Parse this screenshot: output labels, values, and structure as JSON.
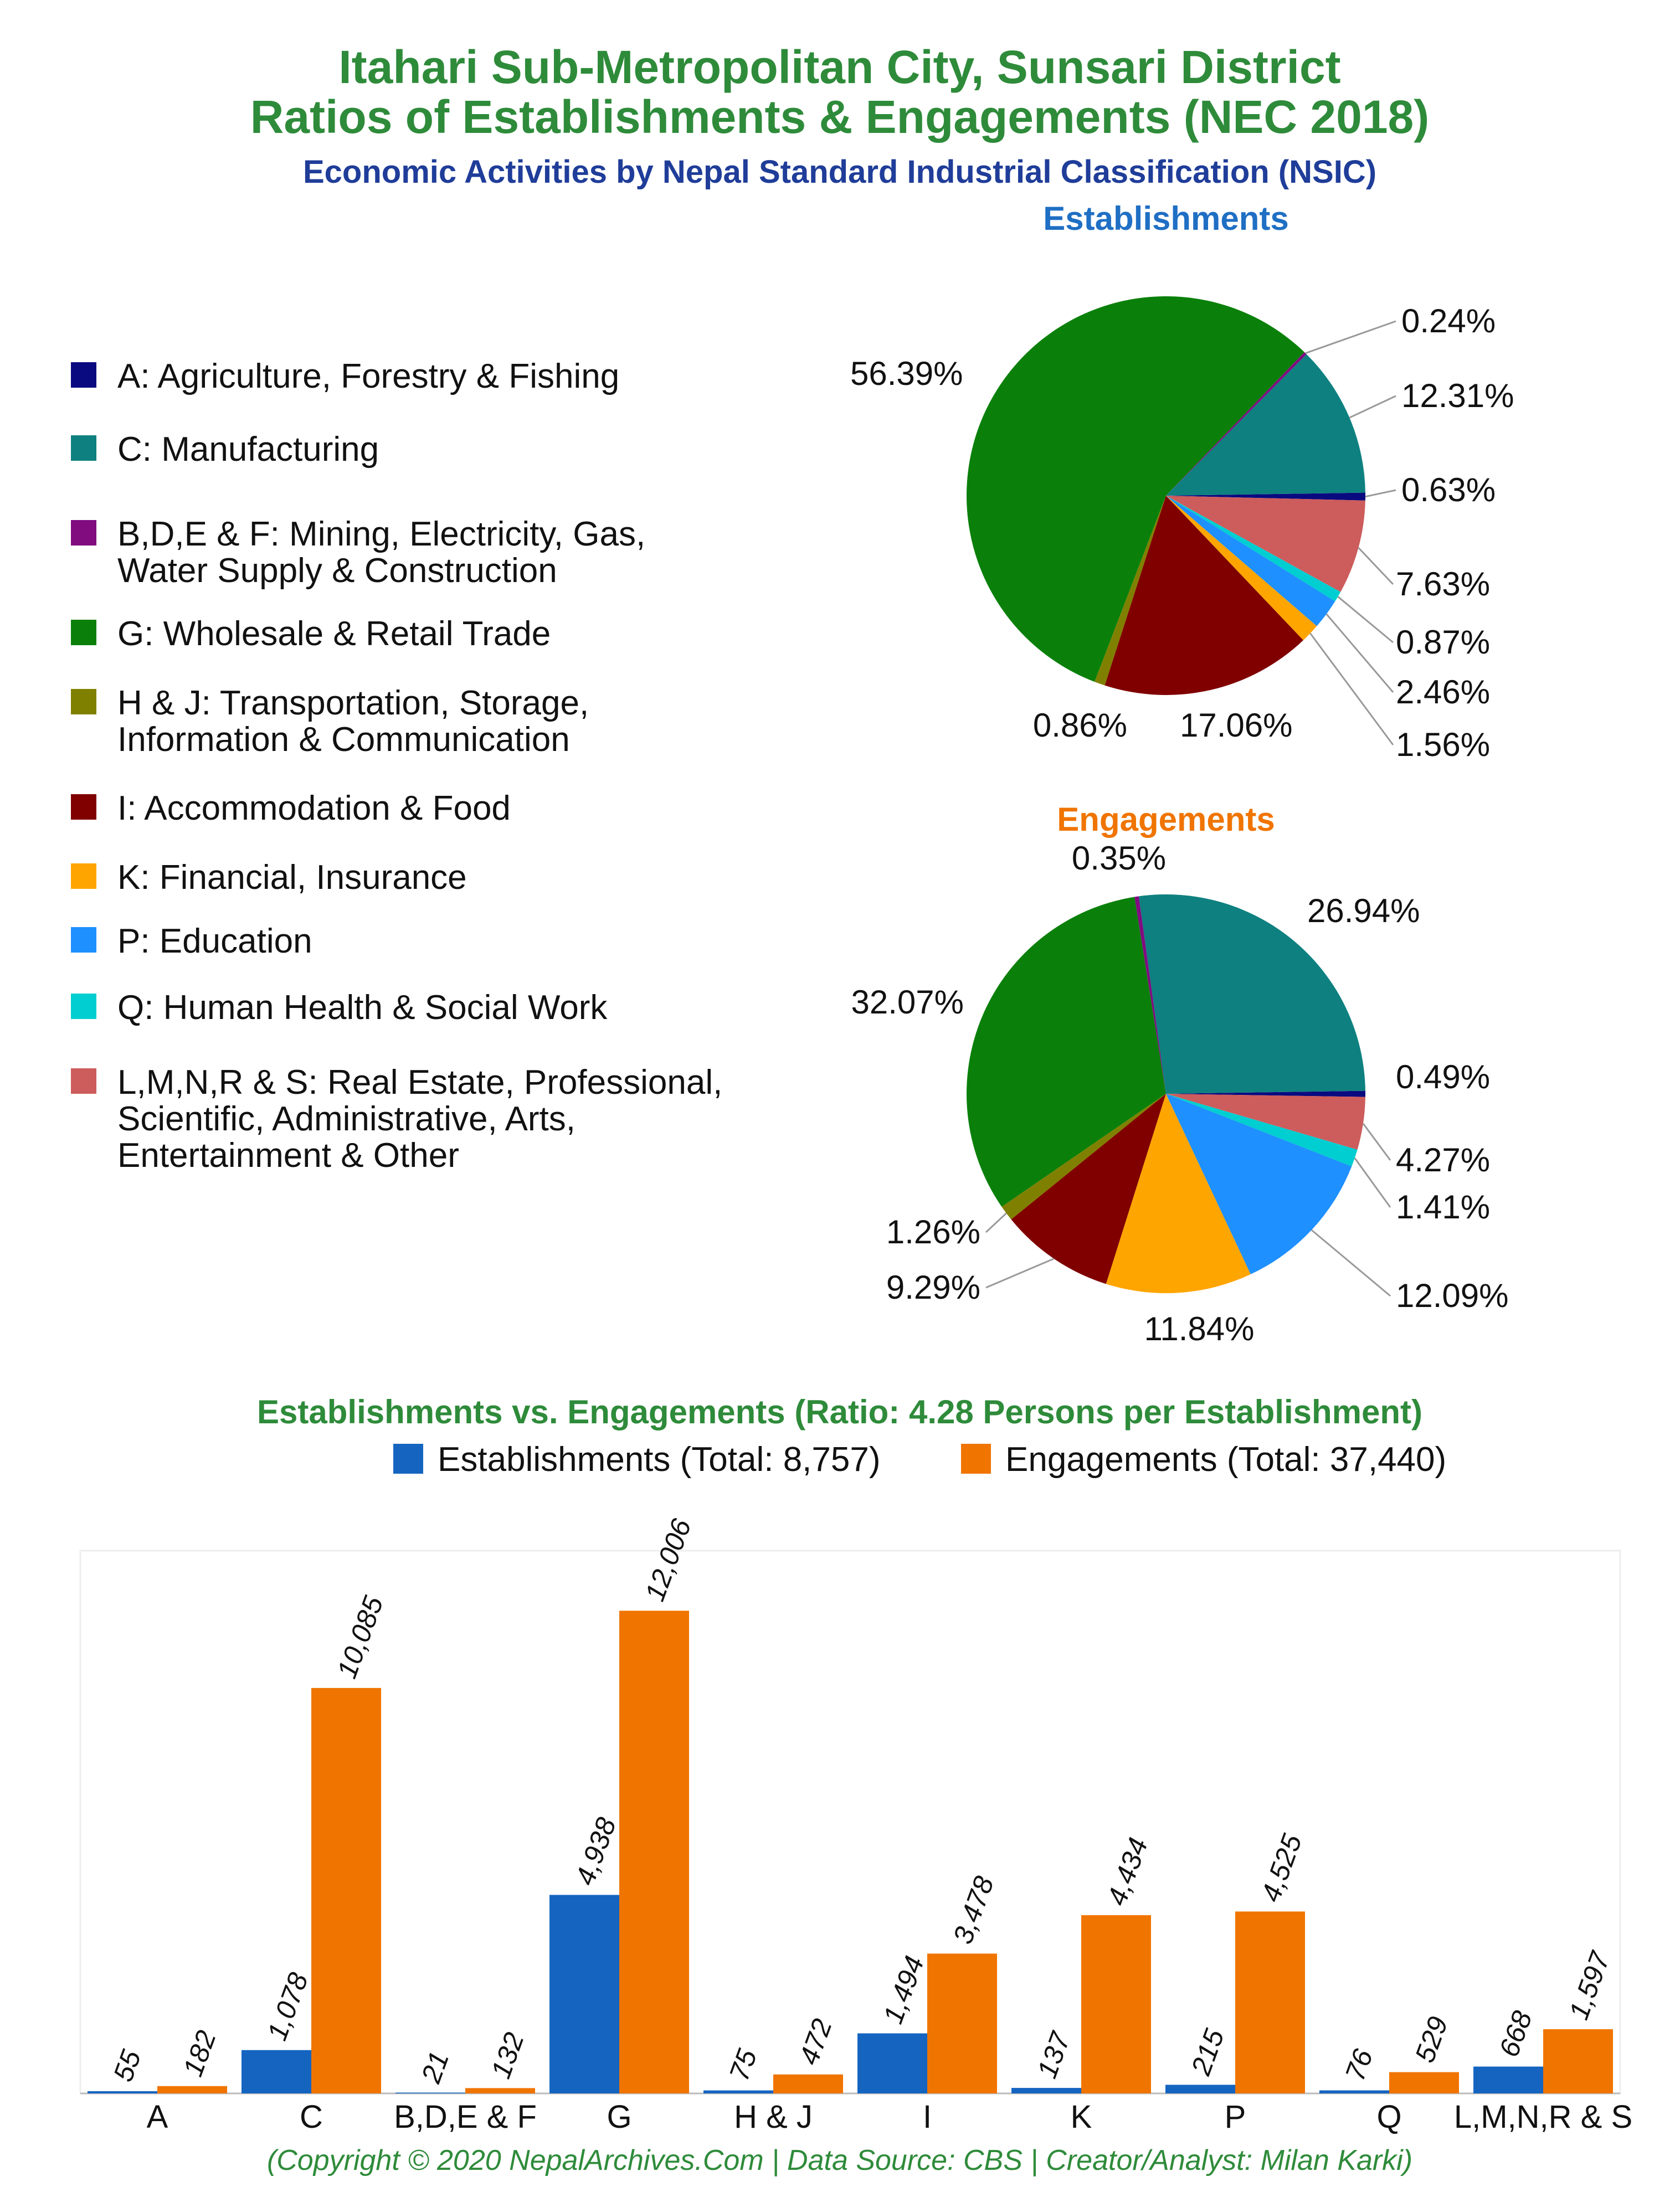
{
  "header": {
    "title_line1": "Itahari Sub-Metropolitan City, Sunsari District",
    "title_line2": "Ratios of Establishments & Engagements (NEC 2018)",
    "subtitle": "Economic Activities by Nepal Standard Industrial Classification (NSIC)"
  },
  "colors": {
    "title_green": "#2e8b3a",
    "subtitle_blue": "#1f3d99",
    "establishments_blue": "#1565c0",
    "engagements_orange": "#f07400",
    "establishments_title": "#1f6fc4",
    "engagements_title": "#f07400"
  },
  "legend": [
    {
      "label_lines": [
        "A: Agriculture, Forestry & Fishing"
      ],
      "color": "#0a0a80"
    },
    {
      "label_lines": [
        "C: Manufacturing"
      ],
      "color": "#0e8080"
    },
    {
      "label_lines": [
        "B,D,E & F: Mining, Electricity, Gas,",
        "Water Supply & Construction"
      ],
      "color": "#800c80"
    },
    {
      "label_lines": [
        "G: Wholesale & Retail Trade"
      ],
      "color": "#0a800a"
    },
    {
      "label_lines": [
        "H & J: Transportation, Storage,",
        "Information & Communication"
      ],
      "color": "#808000"
    },
    {
      "label_lines": [
        "I: Accommodation & Food"
      ],
      "color": "#800000"
    },
    {
      "label_lines": [
        "K: Financial, Insurance"
      ],
      "color": "#ffa500"
    },
    {
      "label_lines": [
        "P: Education"
      ],
      "color": "#1e90ff"
    },
    {
      "label_lines": [
        "Q: Human Health & Social Work"
      ],
      "color": "#00ced1"
    },
    {
      "label_lines": [
        "L,M,N,R & S: Real Estate, Professional,",
        "Scientific, Administrative, Arts,",
        "Entertainment & Other"
      ],
      "color": "#cd5c5c"
    }
  ],
  "chart_data": [
    {
      "type": "pie",
      "title": "Establishments",
      "slices": [
        {
          "category": "A",
          "value": 0.63,
          "label": "0.63%",
          "color": "#0a0a80"
        },
        {
          "category": "C",
          "value": 12.31,
          "label": "12.31%",
          "color": "#0e8080"
        },
        {
          "category": "B,D,E & F",
          "value": 0.24,
          "label": "0.24%",
          "color": "#800c80"
        },
        {
          "category": "G",
          "value": 56.39,
          "label": "56.39%",
          "color": "#0a800a"
        },
        {
          "category": "H & J",
          "value": 0.86,
          "label": "0.86%",
          "color": "#808000"
        },
        {
          "category": "I",
          "value": 17.06,
          "label": "17.06%",
          "color": "#800000"
        },
        {
          "category": "K",
          "value": 1.56,
          "label": "1.56%",
          "color": "#ffa500"
        },
        {
          "category": "P",
          "value": 2.46,
          "label": "2.46%",
          "color": "#1e90ff"
        },
        {
          "category": "Q",
          "value": 0.87,
          "label": "0.87%",
          "color": "#00ced1"
        },
        {
          "category": "L,M,N,R & S",
          "value": 7.63,
          "label": "7.63%",
          "color": "#cd5c5c"
        }
      ]
    },
    {
      "type": "pie",
      "title": "Engagements",
      "slices": [
        {
          "category": "A",
          "value": 0.49,
          "label": "0.49%",
          "color": "#0a0a80"
        },
        {
          "category": "C",
          "value": 26.94,
          "label": "26.94%",
          "color": "#0e8080"
        },
        {
          "category": "B,D,E & F",
          "value": 0.35,
          "label": "0.35%",
          "color": "#800c80"
        },
        {
          "category": "G",
          "value": 32.07,
          "label": "32.07%",
          "color": "#0a800a"
        },
        {
          "category": "H & J",
          "value": 1.26,
          "label": "1.26%",
          "color": "#808000"
        },
        {
          "category": "I",
          "value": 9.29,
          "label": "9.29%",
          "color": "#800000"
        },
        {
          "category": "K",
          "value": 11.84,
          "label": "11.84%",
          "color": "#ffa500"
        },
        {
          "category": "P",
          "value": 12.09,
          "label": "12.09%",
          "color": "#1e90ff"
        },
        {
          "category": "Q",
          "value": 1.41,
          "label": "1.41%",
          "color": "#00ced1"
        },
        {
          "category": "L,M,N,R & S",
          "value": 4.27,
          "label": "4.27%",
          "color": "#cd5c5c"
        }
      ]
    },
    {
      "type": "bar",
      "title": "Establishments vs. Engagements (Ratio: 4.28 Persons per Establishment)",
      "categories": [
        "A",
        "C",
        "B,D,E & F",
        "G",
        "H & J",
        "I",
        "K",
        "P",
        "Q",
        "L,M,N,R & S"
      ],
      "series": [
        {
          "name": "Establishments (Total: 8,757)",
          "color": "#1565c0",
          "values": [
            55,
            1078,
            21,
            4938,
            75,
            1494,
            137,
            215,
            76,
            668
          ],
          "labels": [
            "55",
            "1,078",
            "21",
            "4,938",
            "75",
            "1,494",
            "137",
            "215",
            "76",
            "668"
          ]
        },
        {
          "name": "Engagements (Total: 37,440)",
          "color": "#f07400",
          "values": [
            182,
            10085,
            132,
            12006,
            472,
            3478,
            4434,
            4525,
            529,
            1597
          ],
          "labels": [
            "182",
            "10,085",
            "132",
            "12,006",
            "472",
            "3,478",
            "4,434",
            "4,525",
            "529",
            "1,597"
          ]
        }
      ],
      "ylim": [
        0,
        13500
      ],
      "grid": false,
      "legend_position": "top"
    }
  ],
  "footer": "(Copyright © 2020 NepalArchives.Com | Data Source: CBS | Creator/Analyst: Milan Karki)"
}
